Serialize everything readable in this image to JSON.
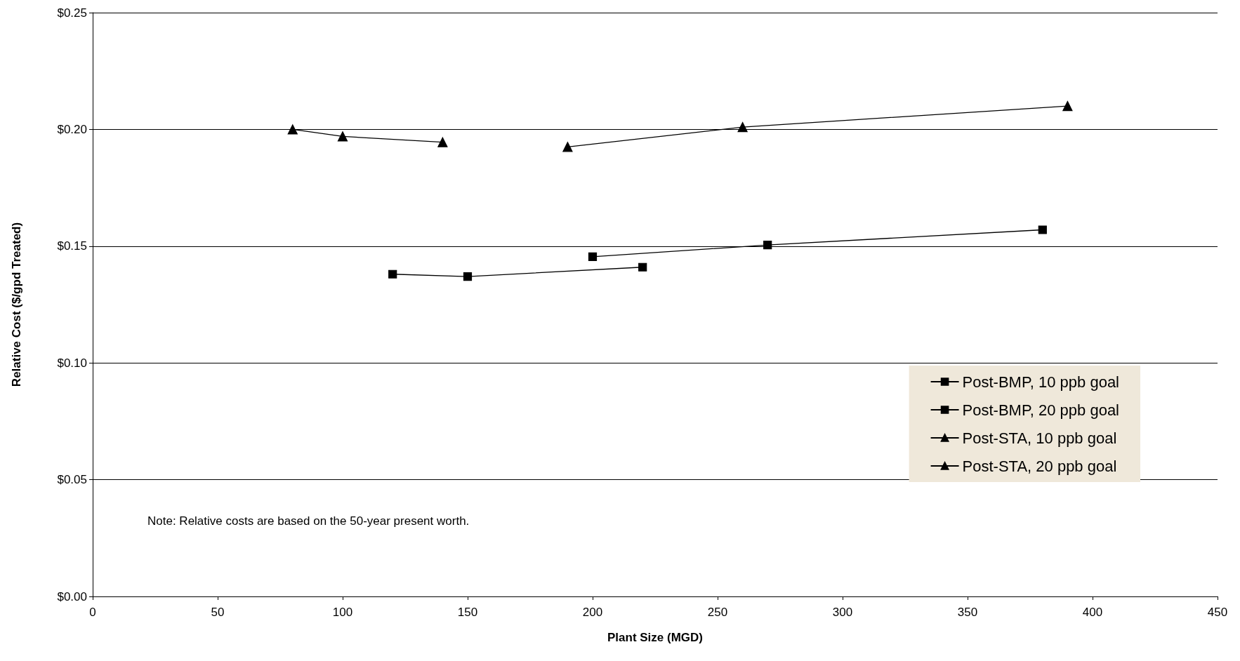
{
  "chart_data": {
    "type": "line",
    "xlabel": "Plant Size (MGD)",
    "ylabel": "Relative Cost ($/gpd Treated)",
    "xlim": [
      0,
      450
    ],
    "xticks": [
      0,
      50,
      100,
      150,
      200,
      250,
      300,
      350,
      400,
      450
    ],
    "ylim": [
      0,
      0.25
    ],
    "yticks": [
      {
        "value": 0,
        "label": "$0.00"
      },
      {
        "value": 0.05,
        "label": "$0.05"
      },
      {
        "value": 0.1,
        "label": "$0.10"
      },
      {
        "value": 0.15,
        "label": "$0.15"
      },
      {
        "value": 0.2,
        "label": "$0.20"
      },
      {
        "value": 0.25,
        "label": "$0.25"
      }
    ],
    "grid": "y",
    "legend": "bottom right",
    "line_style": "solid",
    "annotations": [
      "Note: Relative costs are based on the 50-year present worth."
    ],
    "series": [
      {
        "name": "Post-BMP, 10 ppb goal",
        "color": "#000000",
        "marker": "square",
        "x": [
          200,
          270,
          380
        ],
        "values": [
          0.1455,
          0.1505,
          0.157
        ]
      },
      {
        "name": "Post-BMP, 20 ppb goal",
        "color": "#000000",
        "marker": "square",
        "x": [
          120,
          150,
          220
        ],
        "values": [
          0.138,
          0.137,
          0.141
        ]
      },
      {
        "name": "Post-STA, 10 ppb goal",
        "color": "#000000",
        "marker": "triangle",
        "x": [
          190,
          260,
          390
        ],
        "values": [
          0.1925,
          0.201,
          0.21
        ]
      },
      {
        "name": "Post-STA, 20 ppb goal",
        "color": "#000000",
        "marker": "triangle",
        "x": [
          80,
          100,
          140
        ],
        "values": [
          0.2,
          0.197,
          0.1945
        ]
      }
    ]
  }
}
